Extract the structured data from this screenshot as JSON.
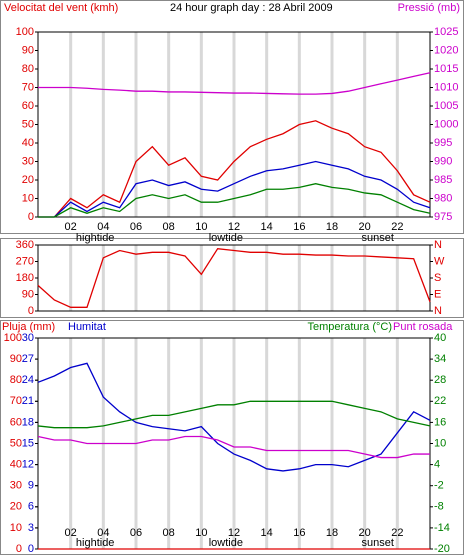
{
  "chart_data": [
    {
      "type": "line",
      "title": "24 hour graph day : 28 Abril 2009",
      "ylabel": "Velocitat del vent (kmh)",
      "y2label": "Pressió (mb)",
      "x": [
        0,
        1,
        2,
        3,
        4,
        5,
        6,
        7,
        8,
        9,
        10,
        11,
        12,
        13,
        14,
        15,
        16,
        17,
        18,
        19,
        20,
        21,
        22,
        23,
        24
      ],
      "xlim": [
        0,
        24
      ],
      "xticks": [
        {
          "value": 2,
          "label": "02"
        },
        {
          "value": 4,
          "label": "04"
        },
        {
          "value": 6,
          "label": "06"
        },
        {
          "value": 8,
          "label": "08"
        },
        {
          "value": 10,
          "label": "10"
        },
        {
          "value": 12,
          "label": "12"
        },
        {
          "value": 14,
          "label": "14"
        },
        {
          "value": 16,
          "label": "16"
        },
        {
          "value": 18,
          "label": "18"
        },
        {
          "value": 20,
          "label": "20"
        },
        {
          "value": 22,
          "label": "22"
        }
      ],
      "annotations": [
        {
          "text": "hightide",
          "x": 3.5
        },
        {
          "text": "lowtide",
          "x": 11.5
        },
        {
          "text": "sunset",
          "x": 20.8
        }
      ],
      "ylim": [
        0,
        100
      ],
      "yticks": [
        0,
        10,
        20,
        30,
        40,
        50,
        60,
        70,
        80,
        90,
        100
      ],
      "ycolor": "#e00000",
      "y2lim": [
        975,
        1025
      ],
      "y2ticks": [
        975,
        980,
        985,
        990,
        995,
        1000,
        1005,
        1010,
        1015,
        1020,
        1025
      ],
      "y2color": "#cc00cc",
      "series": [
        {
          "color": "#e00000",
          "values": [
            0,
            0,
            10,
            5,
            12,
            8,
            30,
            38,
            28,
            32,
            22,
            20,
            30,
            38,
            42,
            45,
            50,
            52,
            48,
            45,
            38,
            35,
            25,
            12,
            8
          ]
        },
        {
          "color": "#0000cc",
          "values": [
            0,
            0,
            8,
            3,
            8,
            5,
            18,
            20,
            17,
            19,
            15,
            14,
            18,
            22,
            25,
            26,
            28,
            30,
            28,
            26,
            22,
            20,
            15,
            8,
            5
          ]
        },
        {
          "color": "#008000",
          "values": [
            0,
            0,
            5,
            2,
            5,
            3,
            10,
            12,
            10,
            12,
            8,
            8,
            10,
            12,
            15,
            15,
            16,
            18,
            16,
            15,
            13,
            12,
            8,
            4,
            2
          ]
        },
        {
          "color": "#cc00cc",
          "axis": "y2",
          "values": [
            1010,
            1010,
            1010,
            1009.8,
            1009.5,
            1009.3,
            1009,
            1009,
            1008.8,
            1008.8,
            1008.7,
            1008.6,
            1008.5,
            1008.5,
            1008.4,
            1008.3,
            1008.2,
            1008.2,
            1008.4,
            1009,
            1010,
            1011,
            1012,
            1013,
            1014
          ]
        }
      ]
    },
    {
      "type": "line",
      "x": [
        0,
        1,
        2,
        3,
        4,
        5,
        6,
        7,
        8,
        9,
        10,
        11,
        12,
        13,
        14,
        15,
        16,
        17,
        18,
        19,
        20,
        21,
        22,
        23,
        24
      ],
      "xlim": [
        0,
        24
      ],
      "ylim": [
        0,
        360
      ],
      "yticks": [
        0,
        90,
        180,
        270,
        360
      ],
      "ycolor": "#e00000",
      "y2lim": [
        0,
        360
      ],
      "y2ticks": [
        {
          "value": 360,
          "label": "N"
        },
        {
          "value": 270,
          "label": "W"
        },
        {
          "value": 180,
          "label": "S"
        },
        {
          "value": 90,
          "label": "E"
        },
        {
          "value": 0,
          "label": "N"
        }
      ],
      "y2color": "#e00000",
      "series": [
        {
          "color": "#e00000",
          "values": [
            140,
            60,
            20,
            20,
            290,
            330,
            310,
            320,
            320,
            300,
            200,
            340,
            330,
            320,
            320,
            310,
            310,
            305,
            305,
            300,
            300,
            295,
            290,
            285,
            50
          ]
        }
      ]
    },
    {
      "type": "line",
      "x": [
        0,
        1,
        2,
        3,
        4,
        5,
        6,
        7,
        8,
        9,
        10,
        11,
        12,
        13,
        14,
        15,
        16,
        17,
        18,
        19,
        20,
        21,
        22,
        23,
        24
      ],
      "xlim": [
        0,
        24
      ],
      "xticks": [
        {
          "value": 2,
          "label": "02"
        },
        {
          "value": 4,
          "label": "04"
        },
        {
          "value": 6,
          "label": "06"
        },
        {
          "value": 8,
          "label": "08"
        },
        {
          "value": 10,
          "label": "10"
        },
        {
          "value": 12,
          "label": "12"
        },
        {
          "value": 14,
          "label": "14"
        },
        {
          "value": 16,
          "label": "16"
        },
        {
          "value": 18,
          "label": "18"
        },
        {
          "value": 20,
          "label": "20"
        },
        {
          "value": 22,
          "label": "22"
        }
      ],
      "annotations": [
        {
          "text": "hightide",
          "x": 3.5
        },
        {
          "text": "lowtide",
          "x": 11.5
        },
        {
          "text": "sunset",
          "x": 20.8
        }
      ],
      "ylim": [
        0,
        100
      ],
      "yticks": [
        0,
        10,
        20,
        30,
        40,
        50,
        60,
        70,
        80,
        90,
        100
      ],
      "ycolor": "#e00000",
      "y3lim": [
        0,
        30
      ],
      "y3ticks": [
        0,
        3,
        6,
        9,
        12,
        15,
        18,
        21,
        24,
        27,
        30
      ],
      "y3color": "#0000cc",
      "y2lim": [
        -20,
        40
      ],
      "y2ticks": [
        -20,
        -14,
        -8,
        -2,
        4,
        10,
        16,
        22,
        28,
        34,
        40
      ],
      "y2color": "#008000",
      "series": [
        {
          "name": "Pluja (mm)",
          "color": "#e00000",
          "values": [
            0,
            0,
            0,
            0,
            0,
            0,
            0,
            0,
            0,
            0,
            0,
            0,
            0,
            0,
            0,
            0,
            0,
            0,
            0,
            0,
            0,
            0,
            0,
            0,
            0
          ]
        },
        {
          "name": "Humitat",
          "color": "#0000cc",
          "values": [
            79,
            82,
            86,
            88,
            72,
            65,
            60,
            58,
            57,
            56,
            58,
            50,
            45,
            42,
            38,
            37,
            38,
            40,
            40,
            39,
            42,
            45,
            55,
            65,
            61
          ]
        },
        {
          "name": "Temperatura (°C)",
          "color": "#008000",
          "axis": "y2",
          "values": [
            15,
            14.5,
            14.5,
            14.5,
            15,
            16,
            17,
            18,
            18,
            19,
            20,
            21,
            21,
            22,
            22,
            22,
            22,
            22,
            22,
            21,
            20,
            19,
            17,
            16,
            15
          ]
        },
        {
          "name": "Punt rosada",
          "color": "#cc00cc",
          "axis": "y2",
          "values": [
            12,
            11,
            11,
            10,
            10,
            10,
            10,
            11,
            11,
            12,
            12,
            11,
            9,
            9,
            8,
            8,
            8,
            8,
            8,
            8,
            7,
            6,
            6,
            7,
            7
          ]
        }
      ]
    }
  ]
}
